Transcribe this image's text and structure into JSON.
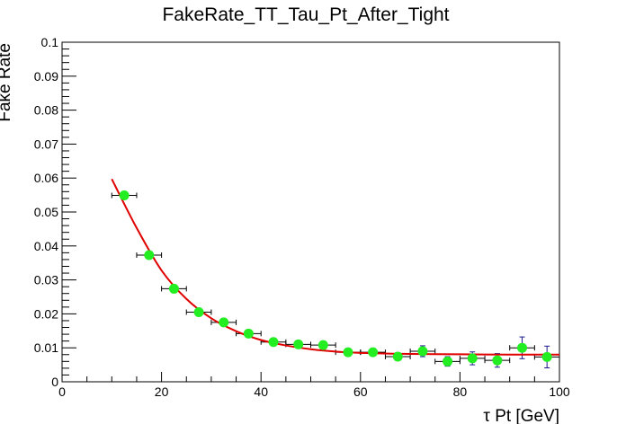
{
  "chart_data": {
    "type": "scatter",
    "title": "FakeRate_TT_Tau_Pt_After_Tight",
    "xlabel": "τ Pt [GeV]",
    "ylabel": "Fake Rate",
    "xlim": [
      0,
      100
    ],
    "ylim": [
      0,
      0.1
    ],
    "x_ticks": [
      "0",
      "20",
      "40",
      "60",
      "80",
      "100"
    ],
    "y_ticks": [
      "0",
      "0.01",
      "0.02",
      "0.03",
      "0.04",
      "0.05",
      "0.06",
      "0.07",
      "0.08",
      "0.09",
      "0.1"
    ],
    "grid": false,
    "legend": "none",
    "marker_color": "#22ee22",
    "error_bar_color": "#1a1a8c",
    "fit_color": "#e00000",
    "points": [
      {
        "x": 12.5,
        "y": 0.0549,
        "xerr": 2.5,
        "yerr": 0.0006
      },
      {
        "x": 17.5,
        "y": 0.0373,
        "xerr": 2.5,
        "yerr": 0.0005
      },
      {
        "x": 22.5,
        "y": 0.0274,
        "xerr": 2.5,
        "yerr": 0.0005
      },
      {
        "x": 27.5,
        "y": 0.0205,
        "xerr": 2.5,
        "yerr": 0.0005
      },
      {
        "x": 32.5,
        "y": 0.0175,
        "xerr": 2.5,
        "yerr": 0.0005
      },
      {
        "x": 37.5,
        "y": 0.0142,
        "xerr": 2.5,
        "yerr": 0.0005
      },
      {
        "x": 42.5,
        "y": 0.0117,
        "xerr": 2.5,
        "yerr": 0.0006
      },
      {
        "x": 47.5,
        "y": 0.011,
        "xerr": 2.5,
        "yerr": 0.0006
      },
      {
        "x": 52.5,
        "y": 0.0108,
        "xerr": 2.5,
        "yerr": 0.0007
      },
      {
        "x": 57.5,
        "y": 0.0087,
        "xerr": 2.5,
        "yerr": 0.001
      },
      {
        "x": 62.5,
        "y": 0.0087,
        "xerr": 2.5,
        "yerr": 0.001
      },
      {
        "x": 67.5,
        "y": 0.0074,
        "xerr": 2.5,
        "yerr": 0.0011
      },
      {
        "x": 72.5,
        "y": 0.009,
        "xerr": 2.5,
        "yerr": 0.0016
      },
      {
        "x": 77.5,
        "y": 0.006,
        "xerr": 2.5,
        "yerr": 0.0014
      },
      {
        "x": 82.5,
        "y": 0.0069,
        "xerr": 2.5,
        "yerr": 0.0019
      },
      {
        "x": 87.5,
        "y": 0.0063,
        "xerr": 2.5,
        "yerr": 0.002
      },
      {
        "x": 92.5,
        "y": 0.01,
        "xerr": 2.5,
        "yerr": 0.0032
      },
      {
        "x": 97.5,
        "y": 0.0073,
        "xerr": 2.5,
        "yerr": 0.0032
      }
    ],
    "fit": {
      "type": "exponential",
      "x_range": [
        10,
        100
      ],
      "curve": [
        {
          "x": 10,
          "y": 0.0597
        },
        {
          "x": 15,
          "y": 0.0453
        },
        {
          "x": 20,
          "y": 0.0328
        },
        {
          "x": 25,
          "y": 0.0244
        },
        {
          "x": 30,
          "y": 0.0187
        },
        {
          "x": 35,
          "y": 0.0149
        },
        {
          "x": 40,
          "y": 0.0123
        },
        {
          "x": 45,
          "y": 0.0107
        },
        {
          "x": 50,
          "y": 0.0096
        },
        {
          "x": 55,
          "y": 0.0089
        },
        {
          "x": 60,
          "y": 0.0085
        },
        {
          "x": 70,
          "y": 0.0082
        },
        {
          "x": 80,
          "y": 0.0081
        },
        {
          "x": 90,
          "y": 0.008
        },
        {
          "x": 100,
          "y": 0.008
        }
      ]
    }
  }
}
